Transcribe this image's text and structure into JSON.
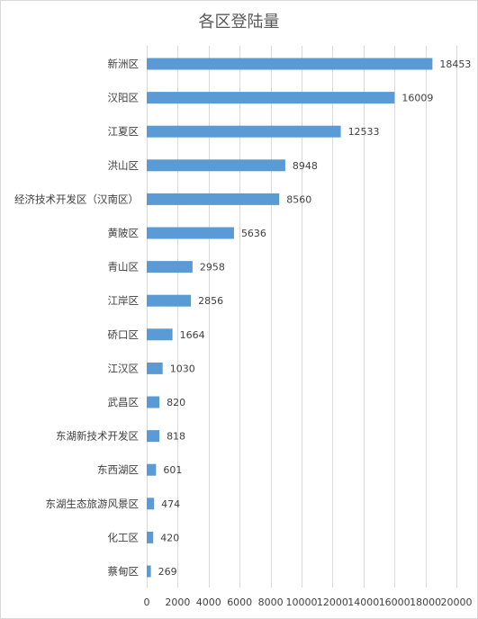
{
  "chart_data": {
    "type": "bar",
    "orientation": "horizontal",
    "title": "各区登陆量",
    "xlabel": "",
    "ylabel": "",
    "categories": [
      "新洲区",
      "汉阳区",
      "江夏区",
      "洪山区",
      "经济技术开发区（汉南区）",
      "黄陂区",
      "青山区",
      "江岸区",
      "硚口区",
      "江汉区",
      "武昌区",
      "东湖新技术开发区",
      "东西湖区",
      "东湖生态旅游风景区",
      "化工区",
      "蔡甸区"
    ],
    "values": [
      18453,
      16009,
      12533,
      8948,
      8560,
      5636,
      2958,
      2856,
      1664,
      1030,
      820,
      818,
      601,
      474,
      420,
      269
    ],
    "xlim": [
      0,
      20000
    ],
    "xticks": [
      0,
      2000,
      4000,
      6000,
      8000,
      10000,
      12000,
      14000,
      16000,
      18000,
      20000
    ],
    "grid": "vertical",
    "legend": "none",
    "data_labels": true,
    "bar_color": "#5b9bd5"
  }
}
